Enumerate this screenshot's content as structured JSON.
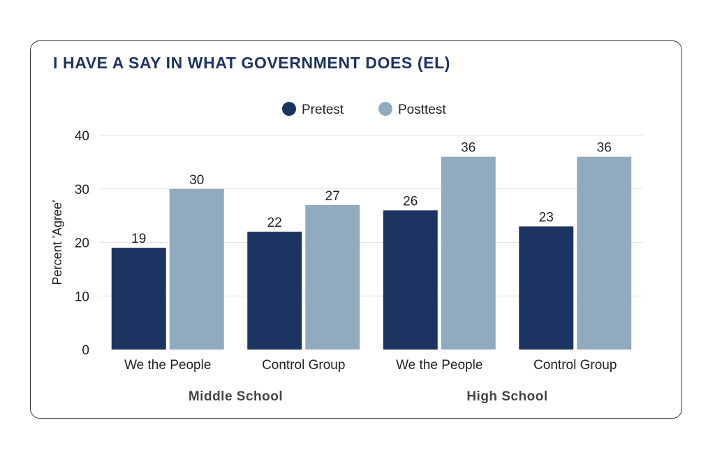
{
  "chart_data": {
    "type": "bar",
    "title": "I HAVE A SAY IN WHAT GOVERNMENT DOES (EL)",
    "ylabel": "Percent 'Agree'",
    "xlabel": "",
    "ylim": [
      0,
      40
    ],
    "yticks": [
      "0",
      "10",
      "20",
      "30",
      "40"
    ],
    "grid": true,
    "legend_position": "top-center",
    "categories": [
      "We the People",
      "Control Group",
      "We the People",
      "Control Group"
    ],
    "groups": [
      {
        "label": "Middle School",
        "categories": [
          "We the People",
          "Control Group"
        ]
      },
      {
        "label": "High School",
        "categories": [
          "We the People",
          "Control Group"
        ]
      }
    ],
    "series": [
      {
        "name": "Pretest",
        "color": "#1c3461",
        "values": [
          19,
          22,
          26,
          23
        ]
      },
      {
        "name": "Posttest",
        "color": "#91abbe",
        "values": [
          30,
          27,
          36,
          36
        ]
      }
    ]
  }
}
